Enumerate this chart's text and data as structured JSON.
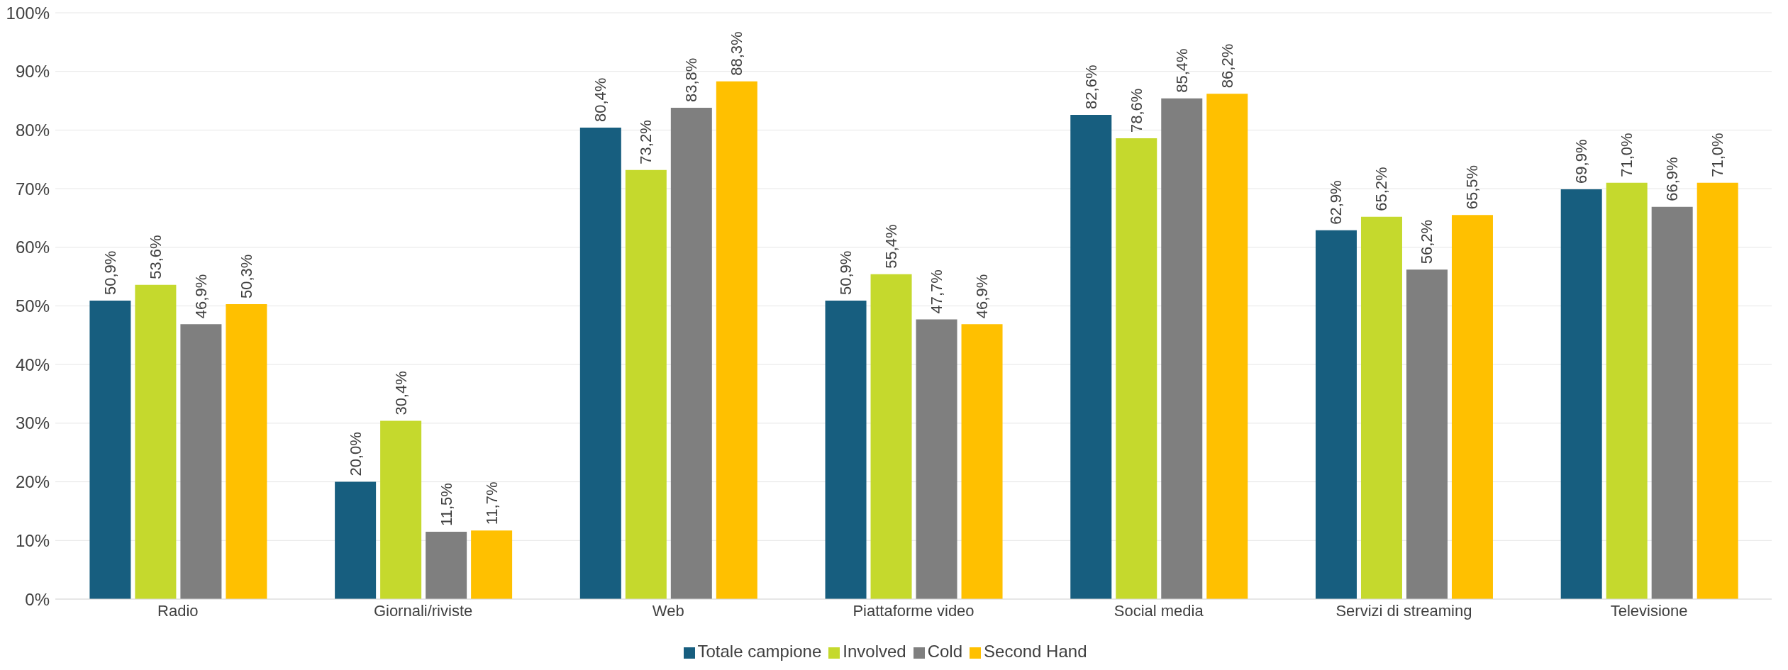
{
  "chart_data": {
    "type": "bar",
    "categories": [
      "Radio",
      "Giornali/riviste",
      "Web",
      "Piattaforme video",
      "Social media",
      "Servizi di streaming",
      "Televisione"
    ],
    "series": [
      {
        "name": "Totale campione",
        "color": "#175e7f",
        "values": [
          50.9,
          20.0,
          80.4,
          50.9,
          82.6,
          62.9,
          69.9
        ],
        "value_labels": [
          "50,9%",
          "20,0%",
          "80,4%",
          "50,9%",
          "82,6%",
          "62,9%",
          "69,9%"
        ]
      },
      {
        "name": "Involved",
        "color": "#c5d92d",
        "values": [
          53.6,
          30.4,
          73.2,
          55.4,
          78.6,
          65.2,
          71.0
        ],
        "value_labels": [
          "53,6%",
          "30,4%",
          "73,2%",
          "55,4%",
          "78,6%",
          "65,2%",
          "71,0%"
        ]
      },
      {
        "name": "Cold",
        "color": "#7f7f7f",
        "values": [
          46.9,
          11.5,
          83.8,
          47.7,
          85.4,
          56.2,
          66.9
        ],
        "value_labels": [
          "46,9%",
          "11,5%",
          "83,8%",
          "47,7%",
          "85,4%",
          "56,2%",
          "66,9%"
        ]
      },
      {
        "name": "Second Hand",
        "color": "#ffc000",
        "values": [
          50.3,
          11.7,
          88.3,
          46.9,
          86.2,
          65.5,
          71.0
        ],
        "value_labels": [
          "50,3%",
          "11,7%",
          "88,3%",
          "46,9%",
          "86,2%",
          "65,5%",
          "71,0%"
        ]
      }
    ],
    "ylim": [
      0,
      100
    ],
    "yticks": [
      {
        "value": 0,
        "label": "0%"
      },
      {
        "value": 10,
        "label": "10%"
      },
      {
        "value": 20,
        "label": "20%"
      },
      {
        "value": 30,
        "label": "30%"
      },
      {
        "value": 40,
        "label": "40%"
      },
      {
        "value": 50,
        "label": "50%"
      },
      {
        "value": 60,
        "label": "60%"
      },
      {
        "value": 70,
        "label": "70%"
      },
      {
        "value": 80,
        "label": "80%"
      },
      {
        "value": 90,
        "label": "90%"
      },
      {
        "value": 100,
        "label": "100%"
      }
    ],
    "grid": "y",
    "legend": "bottom"
  }
}
